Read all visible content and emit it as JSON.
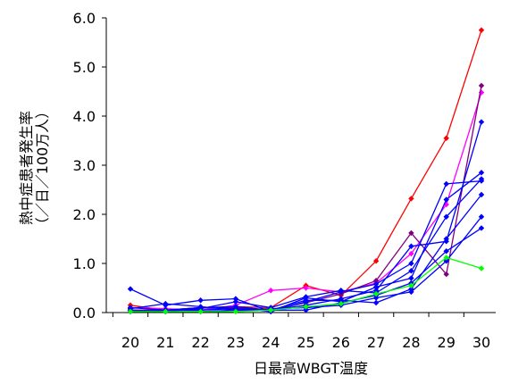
{
  "chart_data": {
    "type": "line",
    "title": "",
    "xlabel": "日最高WBGT温度",
    "ylabel_lines": [
      "熱中症患者発生率",
      "（／日／100万人）"
    ],
    "x": [
      20,
      21,
      22,
      23,
      24,
      25,
      26,
      27,
      28,
      29,
      30
    ],
    "x_tick_labels": [
      "20",
      "21",
      "22",
      "23",
      "24",
      "25",
      "26",
      "27",
      "28",
      "29",
      "30"
    ],
    "y_tick_labels": [
      "0.0",
      "1.0",
      "2.0",
      "3.0",
      "4.0",
      "5.0",
      "6.0"
    ],
    "ylim": [
      0,
      6
    ],
    "xlim": [
      20,
      30
    ],
    "grid": false,
    "legend": "none",
    "series": [
      {
        "color": "#ff0000",
        "values": [
          0.15,
          0.05,
          0.1,
          0.12,
          0.1,
          0.55,
          0.35,
          1.05,
          2.32,
          3.55,
          5.75
        ]
      },
      {
        "color": "#ff00ff",
        "values": [
          0.1,
          0.08,
          0.05,
          0.15,
          0.45,
          0.5,
          0.42,
          0.6,
          1.2,
          2.2,
          4.48
        ]
      },
      {
        "color": "#800080",
        "values": [
          0.05,
          0.05,
          0.1,
          0.1,
          0.05,
          0.2,
          0.38,
          0.65,
          1.62,
          0.78,
          4.62
        ]
      },
      {
        "color": "#0000ff",
        "values": [
          0.48,
          0.15,
          0.25,
          0.28,
          0.02,
          0.22,
          0.42,
          0.58,
          1.0,
          2.62,
          2.68
        ]
      },
      {
        "color": "#0000ff",
        "values": [
          0.08,
          0.18,
          0.12,
          0.05,
          0.05,
          0.15,
          0.28,
          0.45,
          1.35,
          1.45,
          3.88
        ]
      },
      {
        "color": "#0000ff",
        "values": [
          0.02,
          0.05,
          0.05,
          0.08,
          0.02,
          0.3,
          0.22,
          0.52,
          0.7,
          2.3,
          2.85
        ]
      },
      {
        "color": "#0000ff",
        "values": [
          0.05,
          0.02,
          0.08,
          0.22,
          0.1,
          0.32,
          0.45,
          0.4,
          0.85,
          1.95,
          2.72
        ]
      },
      {
        "color": "#0000ff",
        "values": [
          0.1,
          0.05,
          0.1,
          0.12,
          0.05,
          0.25,
          0.25,
          0.2,
          0.48,
          1.5,
          2.4
        ]
      },
      {
        "color": "#0000ff",
        "values": [
          0.02,
          0.02,
          0.02,
          0.05,
          0.08,
          0.1,
          0.15,
          0.3,
          0.42,
          1.05,
          1.95
        ]
      },
      {
        "color": "#0000ff",
        "values": [
          0.05,
          0.02,
          0.1,
          0.08,
          0.05,
          0.05,
          0.2,
          0.35,
          0.6,
          1.25,
          1.72
        ]
      },
      {
        "color": "#00ff00",
        "values": [
          0.02,
          0.02,
          0.02,
          0.02,
          0.05,
          0.12,
          0.18,
          0.38,
          0.55,
          1.12,
          0.9
        ]
      }
    ]
  }
}
